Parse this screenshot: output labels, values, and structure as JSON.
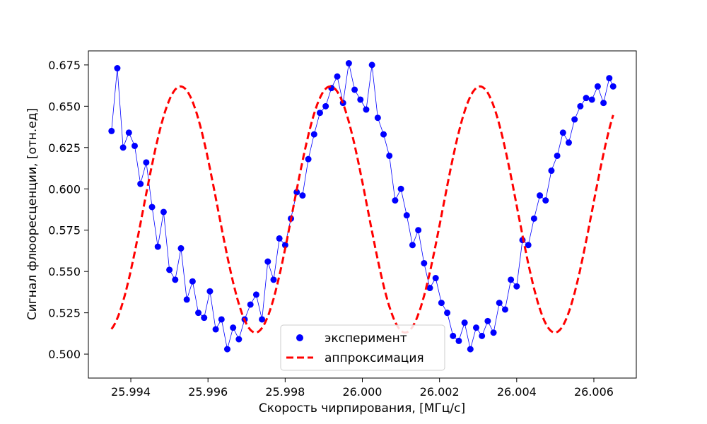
{
  "chart_data": {
    "type": "scatter",
    "title": "",
    "xlabel": "Скорость чирпирования, [МГц/с]",
    "ylabel": "Сигнал флюоресценции, [отн.ед]",
    "xlim": [
      25.9929,
      26.0071
    ],
    "ylim": [
      0.4855,
      0.6835
    ],
    "xticks": [
      25.994,
      25.996,
      25.998,
      26.0,
      26.002,
      26.004,
      26.006
    ],
    "xtick_labels": [
      "25.994",
      "25.996",
      "25.998",
      "26.000",
      "26.002",
      "26.004",
      "26.006"
    ],
    "yticks": [
      0.5,
      0.525,
      0.55,
      0.575,
      0.6,
      0.625,
      0.65,
      0.675
    ],
    "ytick_labels": [
      "0.500",
      "0.525",
      "0.550",
      "0.575",
      "0.600",
      "0.625",
      "0.650",
      "0.675"
    ],
    "grid": false,
    "legend_position": "bottom-center",
    "series": [
      {
        "name": "эксперимент",
        "kind": "scatter-with-line",
        "color": "#0000ff",
        "x": [
          25.9935,
          25.99365,
          25.9938,
          25.99395,
          25.9941,
          25.99425,
          25.9944,
          25.99455,
          25.9947,
          25.99485,
          25.995,
          25.99515,
          25.9953,
          25.99545,
          25.9956,
          25.99575,
          25.9959,
          25.99605,
          25.9962,
          25.99635,
          25.9965,
          25.99665,
          25.9968,
          25.99695,
          25.9971,
          25.99725,
          25.9974,
          25.99755,
          25.9977,
          25.99785,
          25.998,
          25.99815,
          25.9983,
          25.99845,
          25.9986,
          25.99875,
          25.9989,
          25.99905,
          25.9992,
          25.99935,
          25.9995,
          25.99965,
          25.9998,
          25.99995,
          26.0001,
          26.00025,
          26.0004,
          26.00055,
          26.0007,
          26.00085,
          26.001,
          26.00115,
          26.0013,
          26.00145,
          26.0016,
          26.00175,
          26.0019,
          26.00205,
          26.0022,
          26.00235,
          26.0025,
          26.00265,
          26.0028,
          26.00295,
          26.0031,
          26.00325,
          26.0034,
          26.00355,
          26.0037,
          26.00385,
          26.004,
          26.00415,
          26.0043,
          26.00445,
          26.0046,
          26.00475,
          26.0049,
          26.00505,
          26.0052,
          26.00535,
          26.0055,
          26.00565,
          26.0058,
          26.00595,
          26.0061,
          26.00625,
          26.0064,
          26.0065
        ],
        "y": [
          0.635,
          0.673,
          0.625,
          0.634,
          0.626,
          0.603,
          0.616,
          0.589,
          0.565,
          0.586,
          0.551,
          0.545,
          0.564,
          0.533,
          0.544,
          0.525,
          0.522,
          0.538,
          0.515,
          0.521,
          0.503,
          0.516,
          0.509,
          0.521,
          0.53,
          0.536,
          0.521,
          0.556,
          0.545,
          0.57,
          0.566,
          0.582,
          0.598,
          0.596,
          0.618,
          0.633,
          0.646,
          0.65,
          0.661,
          0.668,
          0.652,
          0.676,
          0.66,
          0.654,
          0.648,
          0.675,
          0.643,
          0.633,
          0.62,
          0.593,
          0.6,
          0.584,
          0.566,
          0.575,
          0.555,
          0.54,
          0.546,
          0.531,
          0.525,
          0.511,
          0.508,
          0.519,
          0.503,
          0.516,
          0.511,
          0.52,
          0.513,
          0.531,
          0.527,
          0.545,
          0.541,
          0.569,
          0.566,
          0.582,
          0.596,
          0.593,
          0.611,
          0.62,
          0.634,
          0.628,
          0.642,
          0.65,
          0.655,
          0.654,
          0.662,
          0.652,
          0.667,
          0.662
        ]
      },
      {
        "name": "аппроксимация",
        "kind": "line",
        "color": "#ff0000",
        "style": "dashed",
        "model": "0.5875 + 0.0745*cos(2*pi*(x-25.99917)/0.00388)"
      }
    ]
  }
}
